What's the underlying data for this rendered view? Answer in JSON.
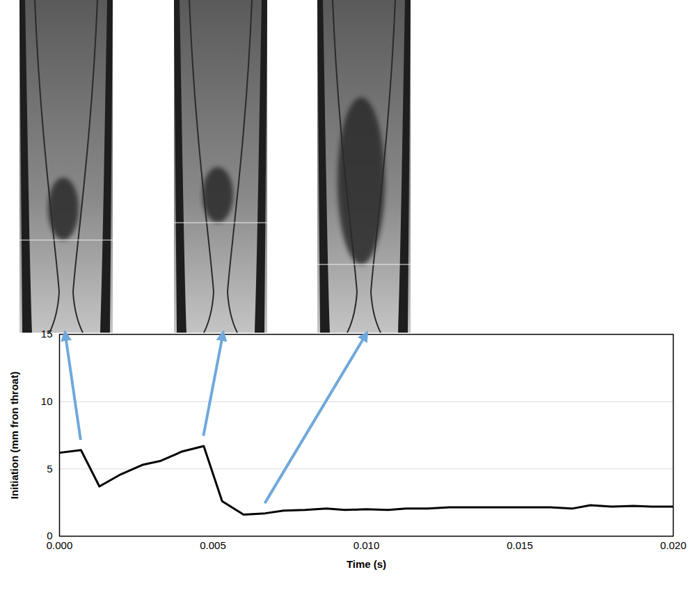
{
  "chart_data": {
    "type": "line",
    "x_label": "Time (s)",
    "y_label": "Initiation (mm fron throat)",
    "x": [
      0,
      0.0007,
      0.0013,
      0.002,
      0.0027,
      0.0033,
      0.004,
      0.0047,
      0.0053,
      0.006,
      0.0067,
      0.0073,
      0.008,
      0.0087,
      0.0093,
      0.01,
      0.0107,
      0.0113,
      0.012,
      0.0127,
      0.0133,
      0.014,
      0.0147,
      0.0153,
      0.016,
      0.0167,
      0.0173,
      0.018,
      0.0187,
      0.0193,
      0.02
    ],
    "values": [
      6.2,
      6.4,
      3.7,
      4.6,
      5.3,
      5.6,
      6.3,
      6.7,
      2.6,
      1.6,
      1.7,
      1.9,
      1.95,
      2.05,
      1.95,
      2.0,
      1.95,
      2.05,
      2.05,
      2.15,
      2.15,
      2.15,
      2.15,
      2.15,
      2.15,
      2.05,
      2.3,
      2.2,
      2.25,
      2.2,
      2.2
    ],
    "color": "#000000",
    "xlim": [
      0,
      0.02
    ],
    "xticks": [
      {
        "value": 0,
        "label": "0.000"
      },
      {
        "value": 0.005,
        "label": "0.005"
      },
      {
        "value": 0.01,
        "label": "0.010"
      },
      {
        "value": 0.015,
        "label": "0.015"
      },
      {
        "value": 0.02,
        "label": "0.020"
      }
    ],
    "ylim": [
      0,
      15
    ],
    "yticks": [
      0,
      5,
      10,
      15
    ],
    "grid": true
  }
}
